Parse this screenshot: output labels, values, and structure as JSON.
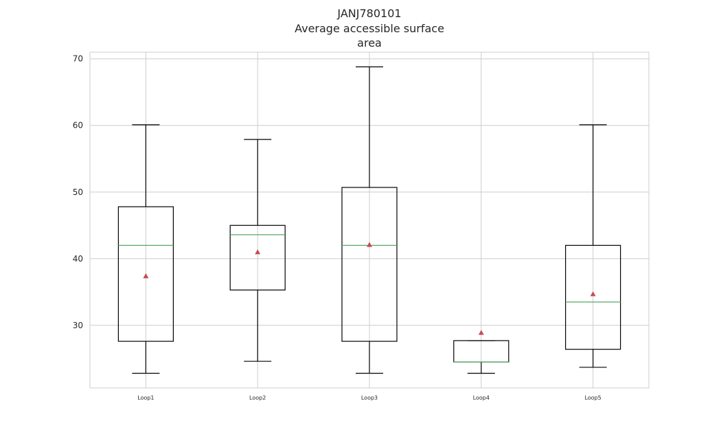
{
  "chart_data": {
    "type": "boxplot",
    "title": [
      "JANJ780101",
      "Average accessible surface",
      "area"
    ],
    "xlabel": "",
    "ylabel": "",
    "ylim": [
      20.6,
      71
    ],
    "yticks": [
      30,
      40,
      50,
      60,
      70
    ],
    "grid": true,
    "categories": [
      "Loop1",
      "Loop2",
      "Loop3",
      "Loop4",
      "Loop5"
    ],
    "boxes": [
      {
        "whisker_low": 22.8,
        "q1": 27.6,
        "median": 42.0,
        "q3": 47.8,
        "whisker_high": 60.1,
        "mean": 37.4
      },
      {
        "whisker_low": 24.6,
        "q1": 35.3,
        "median": 43.6,
        "q3": 45.0,
        "whisker_high": 57.9,
        "mean": 41.0
      },
      {
        "whisker_low": 22.8,
        "q1": 27.6,
        "median": 42.0,
        "q3": 50.7,
        "whisker_high": 68.8,
        "mean": 42.1
      },
      {
        "whisker_low": 22.8,
        "q1": 24.5,
        "median": 24.5,
        "q3": 27.7,
        "whisker_high": 27.7,
        "mean": 28.9
      },
      {
        "whisker_low": 23.7,
        "q1": 26.4,
        "median": 33.5,
        "q3": 42.0,
        "whisker_high": 60.1,
        "mean": 34.7
      }
    ],
    "colors": {
      "box": "#000000",
      "median": "#55a868",
      "mean": "#c44e52",
      "grid": "#cccccc",
      "frame": "#cccccc"
    }
  }
}
